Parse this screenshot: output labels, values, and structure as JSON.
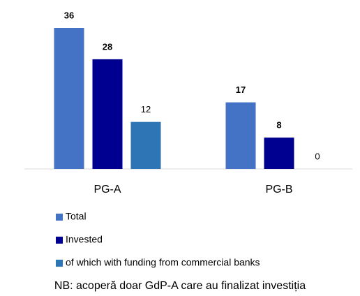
{
  "chart_data": {
    "type": "bar",
    "categories": [
      "PG-A",
      "PG-B"
    ],
    "series": [
      {
        "name": "Total",
        "color": "#4472c4",
        "values": [
          36,
          17
        ]
      },
      {
        "name": "Invested",
        "color": "#000090",
        "values": [
          28,
          8
        ]
      },
      {
        "name": "of which with funding from commercial banks",
        "color": "#2e75b6",
        "values": [
          12,
          0
        ]
      }
    ],
    "legend": "bottom-left",
    "note": "NB: acoperă doar GdP-A care au finalizat investiția"
  }
}
